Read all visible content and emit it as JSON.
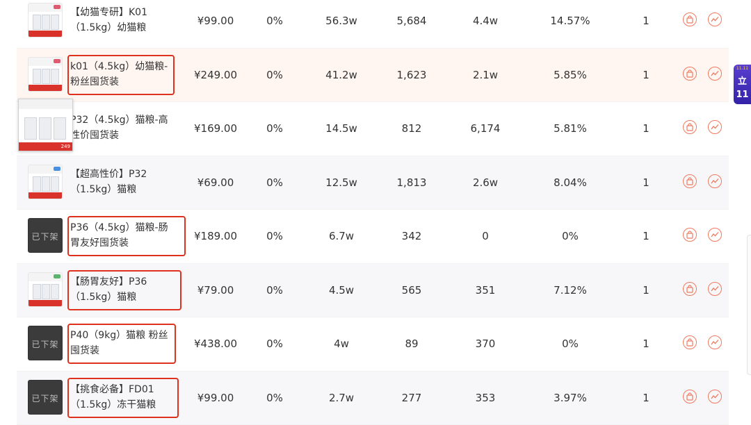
{
  "rows": [
    {
      "name": "【幼猫专研】K01（1.5kg）幼猫粮",
      "price": "¥99.00",
      "rate": "0%",
      "col_a": "56.3w",
      "col_b": "5,684",
      "col_c": "4.4w",
      "col_d": "14.57%",
      "col_e": "1",
      "thumb": "pink",
      "boxed": false,
      "bg": "white"
    },
    {
      "name": "k01（4.5kg）幼猫粮-粉丝囤货装",
      "price": "¥249.00",
      "rate": "0%",
      "col_a": "41.2w",
      "col_b": "1,623",
      "col_c": "2.1w",
      "col_d": "5.85%",
      "col_e": "1",
      "thumb": "pink",
      "boxed": true,
      "bg": "hl"
    },
    {
      "name": "P32（4.5kg）猫粮-高性价囤货装",
      "price": "¥169.00",
      "rate": "0%",
      "col_a": "14.5w",
      "col_b": "812",
      "col_c": "6,174",
      "col_d": "5.81%",
      "col_e": "1",
      "thumb": "blue",
      "boxed": false,
      "bg": "white"
    },
    {
      "name": "【超高性价】P32（1.5kg）猫粮",
      "price": "¥69.00",
      "rate": "0%",
      "col_a": "12.5w",
      "col_b": "1,813",
      "col_c": "2.6w",
      "col_d": "8.04%",
      "col_e": "1",
      "thumb": "blue",
      "boxed": false,
      "bg": "alt"
    },
    {
      "name": "P36（4.5kg）猫粮-肠胃友好囤货装",
      "price": "¥189.00",
      "rate": "0%",
      "col_a": "6.7w",
      "col_b": "342",
      "col_c": "0",
      "col_d": "0%",
      "col_e": "1",
      "thumb": "off",
      "boxed": true,
      "bg": "white"
    },
    {
      "name": "【肠胃友好】P36（1.5kg）猫粮",
      "price": "¥79.00",
      "rate": "0%",
      "col_a": "4.5w",
      "col_b": "565",
      "col_c": "351",
      "col_d": "7.12%",
      "col_e": "1",
      "thumb": "green",
      "boxed": true,
      "bg": "alt"
    },
    {
      "name": "P40（9kg）猫粮 粉丝囤货装",
      "price": "¥438.00",
      "rate": "0%",
      "col_a": "4w",
      "col_b": "89",
      "col_c": "370",
      "col_d": "0%",
      "col_e": "1",
      "thumb": "off",
      "boxed": true,
      "bg": "white"
    },
    {
      "name": "【挑食必备】FD01（1.5kg）冻干猫粮",
      "price": "¥99.00",
      "rate": "0%",
      "col_a": "2.7w",
      "col_b": "277",
      "col_c": "353",
      "col_d": "3.97%",
      "col_e": "1",
      "thumb": "off",
      "boxed": true,
      "bg": "alt"
    }
  ],
  "offline_label": "已下架",
  "popout_price": "249",
  "promo": {
    "line1": "11.11",
    "line2": "立",
    "line3": "11"
  },
  "colors": {
    "accent": "#f0795d",
    "box": "#e0301e"
  },
  "icons": {
    "action1": "shopping-bag-icon",
    "action2": "trend-chart-icon"
  }
}
